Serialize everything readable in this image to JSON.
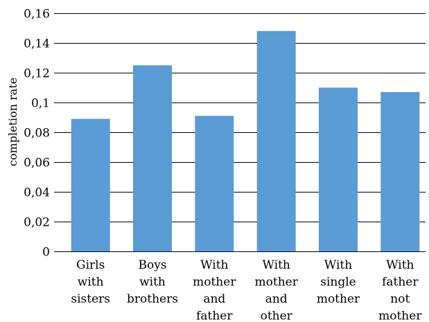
{
  "chart_data": {
    "type": "bar",
    "categories": [
      [
        "Girls",
        "with",
        "sisters"
      ],
      [
        "Boys",
        "with",
        "brothers"
      ],
      [
        "With",
        "mother",
        "and",
        "father"
      ],
      [
        "With",
        "mother",
        "and",
        "other"
      ],
      [
        "With",
        "single",
        "mother"
      ],
      [
        "With",
        "father",
        "not",
        "mother"
      ]
    ],
    "values": [
      0.089,
      0.125,
      0.091,
      0.148,
      0.11,
      0.107
    ],
    "ylabel": "completion rate",
    "xlabel": "",
    "title": "",
    "ylim": [
      0,
      0.16
    ],
    "yticks": [
      0,
      0.02,
      0.04,
      0.06,
      0.08,
      0.1,
      0.12,
      0.14,
      0.16
    ],
    "ytick_labels": [
      "0",
      "0,02",
      "0,04",
      "0,06",
      "0,08",
      "0,1",
      "0,12",
      "0,14",
      "0,16"
    ],
    "grid": true,
    "legend": "none",
    "bar_color": "#5b9bd5"
  }
}
